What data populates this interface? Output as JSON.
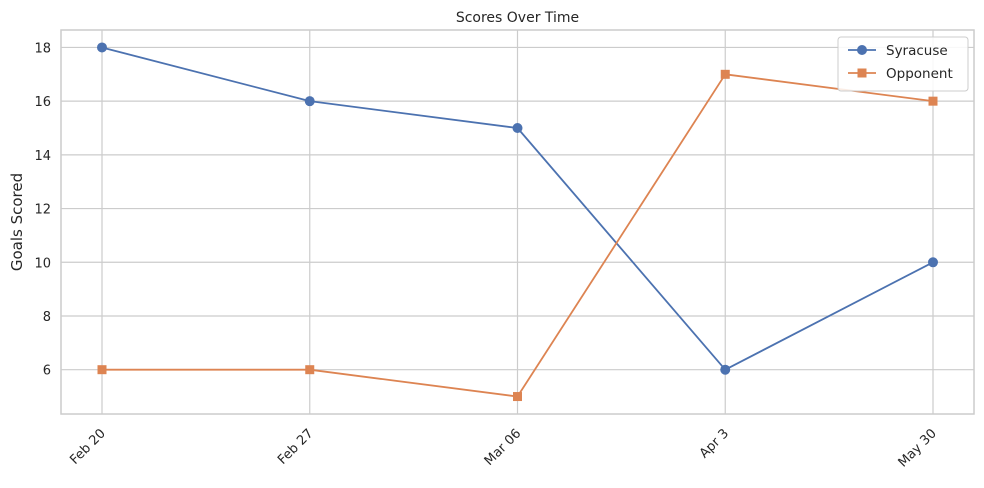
{
  "chart_data": {
    "type": "line",
    "title": "Scores Over Time",
    "xlabel": "",
    "ylabel": "Goals Scored",
    "categories": [
      "Feb 20",
      "Feb 27",
      "Mar 06",
      "Apr 3",
      "May 30"
    ],
    "series": [
      {
        "name": "Syracuse",
        "values": [
          18,
          16,
          15,
          6,
          10
        ],
        "color": "#4C72B0",
        "marker": "circle"
      },
      {
        "name": "Opponent",
        "values": [
          6,
          6,
          5,
          17,
          16
        ],
        "color": "#DD8452",
        "marker": "square"
      }
    ],
    "ylim": [
      4.35,
      18.65
    ],
    "yticks": [
      6,
      8,
      10,
      12,
      14,
      16,
      18
    ],
    "grid": true,
    "legend_position": "top-right",
    "x_tick_rotation_deg": 45
  }
}
